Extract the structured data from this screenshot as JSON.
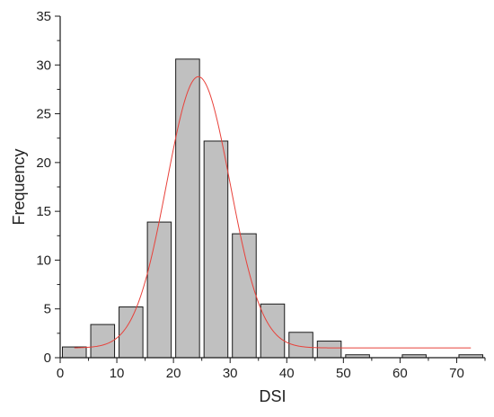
{
  "chart_data": {
    "type": "bar",
    "title": "",
    "xlabel": "DSI",
    "ylabel": "Frequency",
    "xlim": [
      0,
      75
    ],
    "ylim": [
      0,
      35
    ],
    "x_ticks": [
      0,
      10,
      20,
      30,
      40,
      50,
      60,
      70
    ],
    "y_ticks": [
      0,
      5,
      10,
      15,
      20,
      25,
      30,
      35
    ],
    "bin_width": 5,
    "grid": false,
    "legend": "none",
    "bars": [
      {
        "x0": 0,
        "x1": 5,
        "value": 1.1
      },
      {
        "x0": 5,
        "x1": 10,
        "value": 3.4
      },
      {
        "x0": 10,
        "x1": 15,
        "value": 5.2
      },
      {
        "x0": 15,
        "x1": 20,
        "value": 13.9
      },
      {
        "x0": 20,
        "x1": 25,
        "value": 30.6
      },
      {
        "x0": 25,
        "x1": 30,
        "value": 22.2
      },
      {
        "x0": 30,
        "x1": 35,
        "value": 12.7
      },
      {
        "x0": 35,
        "x1": 40,
        "value": 5.5
      },
      {
        "x0": 40,
        "x1": 45,
        "value": 2.6
      },
      {
        "x0": 45,
        "x1": 50,
        "value": 1.7
      },
      {
        "x0": 50,
        "x1": 55,
        "value": 0.3
      },
      {
        "x0": 55,
        "x1": 60,
        "value": 0
      },
      {
        "x0": 60,
        "x1": 65,
        "value": 0.3
      },
      {
        "x0": 65,
        "x1": 70,
        "value": 0
      },
      {
        "x0": 70,
        "x1": 75,
        "value": 0.3
      }
    ],
    "fit_curve": {
      "type": "gaussian",
      "baseline": 1.0,
      "amplitude": 27.8,
      "center": 24.4,
      "sigma": 5.6,
      "x_range": [
        2.5,
        72.5
      ]
    },
    "colors": {
      "bar_fill": "#c0c0c0",
      "bar_stroke": "#1a1a1a",
      "curve": "#e8413a",
      "axis": "#1a1a1a"
    }
  }
}
